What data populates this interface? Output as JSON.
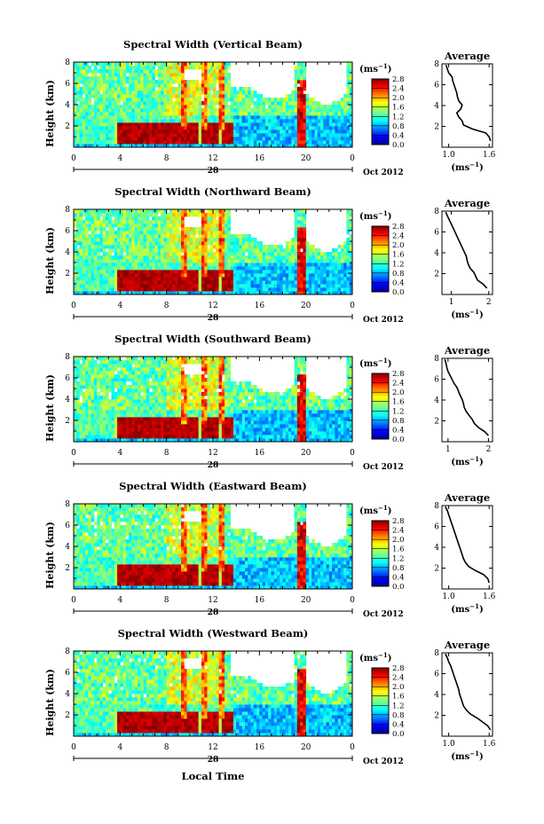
{
  "chart_data": [
    {
      "type": "heatmap",
      "title": "Spectral Width (Vertical Beam)",
      "average_xticks": [
        "1.0",
        "1.6"
      ],
      "average_xlim": [
        0.9,
        1.65
      ],
      "average_profile": [
        1.62,
        1.6,
        1.55,
        1.35,
        1.22,
        1.2,
        1.15,
        1.12,
        1.18,
        1.2,
        1.15,
        1.13,
        1.12,
        1.1,
        1.08,
        1.06,
        1.05,
        1.0,
        0.98,
        0.96
      ]
    },
    {
      "type": "heatmap",
      "title": "Spectral Width (Northward Beam)",
      "average_xticks": [
        "1",
        "2"
      ],
      "average_xlim": [
        0.75,
        2.1
      ],
      "average_profile": [
        1.95,
        1.85,
        1.7,
        1.65,
        1.6,
        1.5,
        1.45,
        1.42,
        1.4,
        1.35,
        1.3,
        1.25,
        1.2,
        1.15,
        1.1,
        1.05,
        1.0,
        0.95,
        0.9,
        0.85
      ]
    },
    {
      "type": "heatmap",
      "title": "Spectral Width (Southward Beam)",
      "average_xticks": [
        "1",
        "2"
      ],
      "average_xlim": [
        0.85,
        2.1
      ],
      "average_profile": [
        2.0,
        1.9,
        1.75,
        1.65,
        1.6,
        1.52,
        1.45,
        1.4,
        1.38,
        1.35,
        1.3,
        1.26,
        1.22,
        1.15,
        1.1,
        1.05,
        1.0,
        0.97,
        0.95,
        0.92
      ]
    },
    {
      "type": "heatmap",
      "title": "Spectral Width (Eastward Beam)",
      "average_xticks": [
        "1.0",
        "1.6"
      ],
      "average_xlim": [
        0.9,
        1.65
      ],
      "average_profile": [
        1.6,
        1.58,
        1.52,
        1.4,
        1.3,
        1.25,
        1.22,
        1.2,
        1.18,
        1.16,
        1.14,
        1.12,
        1.1,
        1.08,
        1.06,
        1.04,
        1.02,
        1.0,
        0.98,
        0.95
      ]
    },
    {
      "type": "heatmap",
      "title": "Spectral Width (Westward Beam)",
      "average_xticks": [
        "1.0",
        "1.6"
      ],
      "average_xlim": [
        0.9,
        1.65
      ],
      "average_profile": [
        1.62,
        1.58,
        1.5,
        1.42,
        1.32,
        1.26,
        1.22,
        1.2,
        1.18,
        1.16,
        1.15,
        1.13,
        1.11,
        1.09,
        1.07,
        1.05,
        1.03,
        1.0,
        0.98,
        0.95
      ]
    }
  ],
  "shared": {
    "ylabel": "Height (km)",
    "ylim": [
      0,
      8
    ],
    "yticks": [
      "2",
      "4",
      "6",
      "8"
    ],
    "xlim": [
      0,
      24
    ],
    "xticks": [
      "0",
      "4",
      "8",
      "12",
      "16",
      "20",
      "0"
    ],
    "date_day": "28",
    "date_label": "Oct 2012",
    "xlabel": "Local Time",
    "colorbar_unit": "(ms",
    "colorbar_unit_exp": "−1",
    "colorbar_unit_close": ")",
    "colorbar_ticks": [
      "0.0",
      "0.4",
      "0.8",
      "1.2",
      "1.6",
      "2.0",
      "2.4",
      "2.8"
    ],
    "colorbar_range": [
      0,
      2.8
    ],
    "average_title": "Average",
    "average_ylim": [
      0,
      8
    ],
    "average_yticks": [
      "2",
      "4",
      "6",
      "8"
    ],
    "average_unit": "(ms",
    "average_unit_exp": "−1",
    "average_unit_close": ")"
  }
}
